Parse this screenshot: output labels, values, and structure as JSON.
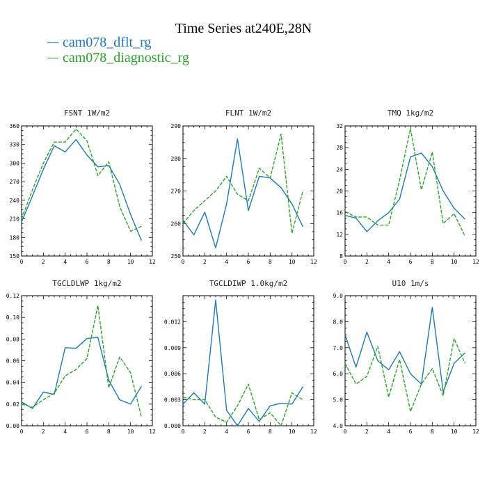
{
  "title": "Time Series at240E,28N",
  "legend": [
    {
      "name": "cam078_dflt_rg",
      "color": "#1f77b4"
    },
    {
      "name": "cam078_diagnostic_rg",
      "color": "#2ca02c"
    }
  ],
  "chart_data": [
    {
      "type": "line",
      "title": "FSNT   1W/m2",
      "x": [
        0,
        1,
        2,
        3,
        4,
        5,
        6,
        7,
        8,
        9,
        10,
        11
      ],
      "xlim": [
        0,
        12
      ],
      "xticks": [
        0,
        2,
        4,
        6,
        8,
        10,
        12
      ],
      "ylim": [
        150,
        360
      ],
      "yticks": [
        150,
        180,
        210,
        240,
        270,
        300,
        330,
        360
      ],
      "series": [
        {
          "name": "cam078_dflt_rg",
          "values": [
            205,
            247,
            290,
            328,
            318,
            338,
            313,
            294,
            296,
            266,
            217,
            175
          ]
        },
        {
          "name": "cam078_diagnostic_rg",
          "values": [
            210,
            257,
            300,
            334,
            334,
            355,
            336,
            280,
            302,
            230,
            190,
            198
          ]
        }
      ]
    },
    {
      "type": "line",
      "title": "FLNT   1W/m2",
      "x": [
        0,
        1,
        2,
        3,
        4,
        5,
        6,
        7,
        8,
        9,
        10,
        11
      ],
      "xlim": [
        0,
        12
      ],
      "xticks": [
        0,
        2,
        4,
        6,
        8,
        10,
        12
      ],
      "ylim": [
        250,
        290
      ],
      "yticks": [
        250,
        260,
        270,
        280,
        290
      ],
      "series": [
        {
          "name": "cam078_dflt_rg",
          "values": [
            261,
            256.5,
            263.5,
            252.5,
            266,
            286,
            264,
            274.5,
            274,
            271,
            266,
            259
          ]
        },
        {
          "name": "cam078_diagnostic_rg",
          "values": [
            260,
            264,
            267,
            270,
            274.5,
            269,
            267,
            277,
            274,
            287.5,
            257,
            270
          ]
        }
      ]
    },
    {
      "type": "line",
      "title": "TMQ   1kg/m2",
      "x": [
        0,
        1,
        2,
        3,
        4,
        5,
        6,
        7,
        8,
        9,
        10,
        11
      ],
      "xlim": [
        0,
        12
      ],
      "xticks": [
        0,
        2,
        4,
        6,
        8,
        10,
        12
      ],
      "ylim": [
        8,
        32
      ],
      "yticks": [
        8,
        12,
        16,
        20,
        24,
        28,
        32
      ],
      "series": [
        {
          "name": "cam078_dflt_rg",
          "values": [
            15.5,
            15,
            12.5,
            14.5,
            16,
            18.5,
            26.3,
            27,
            24.5,
            20,
            16.8,
            14.8
          ]
        },
        {
          "name": "cam078_diagnostic_rg",
          "values": [
            16.2,
            15.2,
            15.2,
            13.7,
            13.7,
            22,
            31.5,
            20.2,
            27.2,
            14,
            15.8,
            11.7
          ]
        }
      ]
    },
    {
      "type": "line",
      "title": "TGCLDLWP   1kg/m2",
      "x": [
        0,
        1,
        2,
        3,
        4,
        5,
        6,
        7,
        8,
        9,
        10,
        11
      ],
      "xlim": [
        0,
        12
      ],
      "xticks": [
        0,
        2,
        4,
        6,
        8,
        10,
        12
      ],
      "ylim": [
        0,
        0.12
      ],
      "yticks": [
        0.0,
        0.02,
        0.04,
        0.06,
        0.08,
        0.1,
        0.12
      ],
      "ytick_labels": [
        "0.00",
        "0.02",
        "0.04",
        "0.06",
        "0.08",
        "0.10",
        "0.12"
      ],
      "series": [
        {
          "name": "cam078_dflt_rg",
          "values": [
            0.022,
            0.016,
            0.031,
            0.029,
            0.072,
            0.0715,
            0.0805,
            0.0815,
            0.042,
            0.024,
            0.02,
            0.0365
          ]
        },
        {
          "name": "cam078_diagnostic_rg",
          "values": [
            0.02,
            0.017,
            0.024,
            0.03,
            0.046,
            0.052,
            0.062,
            0.111,
            0.035,
            0.0635,
            0.049,
            0.008
          ]
        }
      ]
    },
    {
      "type": "line",
      "title": "TGCLDIWP   1.0kg/m2",
      "x": [
        0,
        1,
        2,
        3,
        4,
        5,
        6,
        7,
        8,
        9,
        10,
        11
      ],
      "xlim": [
        0,
        12
      ],
      "xticks": [
        0,
        2,
        4,
        6,
        8,
        10,
        12
      ],
      "ylim": [
        0,
        0.015
      ],
      "yticks": [
        0.0,
        0.003,
        0.006,
        0.009,
        0.012
      ],
      "ytick_labels": [
        "0.000",
        "0.003",
        "0.006",
        "0.009",
        "0.012"
      ],
      "series": [
        {
          "name": "cam078_dflt_rg",
          "values": [
            0.0025,
            0.0038,
            0.0025,
            0.0145,
            0.0018,
            0.0,
            0.002,
            0.0005,
            0.0023,
            0.0026,
            0.0025,
            0.0045
          ]
        },
        {
          "name": "cam078_diagnostic_rg",
          "values": [
            0.0033,
            0.003,
            0.003,
            0.001,
            0.0004,
            0.0023,
            0.0048,
            0.0007,
            0.0015,
            0.0,
            0.0038,
            0.003
          ]
        }
      ]
    },
    {
      "type": "line",
      "title": "U10   1m/s",
      "x": [
        0,
        1,
        2,
        3,
        4,
        5,
        6,
        7,
        8,
        9,
        10,
        11
      ],
      "xlim": [
        0,
        12
      ],
      "xticks": [
        0,
        2,
        4,
        6,
        8,
        10,
        12
      ],
      "ylim": [
        4,
        9
      ],
      "yticks": [
        4,
        5,
        6,
        7,
        8,
        9
      ],
      "ytick_labels": [
        "4.0",
        "5.0",
        "6.0",
        "7.0",
        "8.0",
        "9.0"
      ],
      "series": [
        {
          "name": "cam078_dflt_rg",
          "values": [
            7.5,
            6.25,
            7.6,
            6.5,
            6.15,
            6.85,
            6.0,
            5.6,
            8.55,
            5.3,
            6.4,
            6.8
          ]
        },
        {
          "name": "cam078_diagnostic_rg",
          "values": [
            6.4,
            5.6,
            5.9,
            7.05,
            5.1,
            6.55,
            4.55,
            5.6,
            6.2,
            5.15,
            7.35,
            6.4
          ]
        }
      ]
    }
  ]
}
